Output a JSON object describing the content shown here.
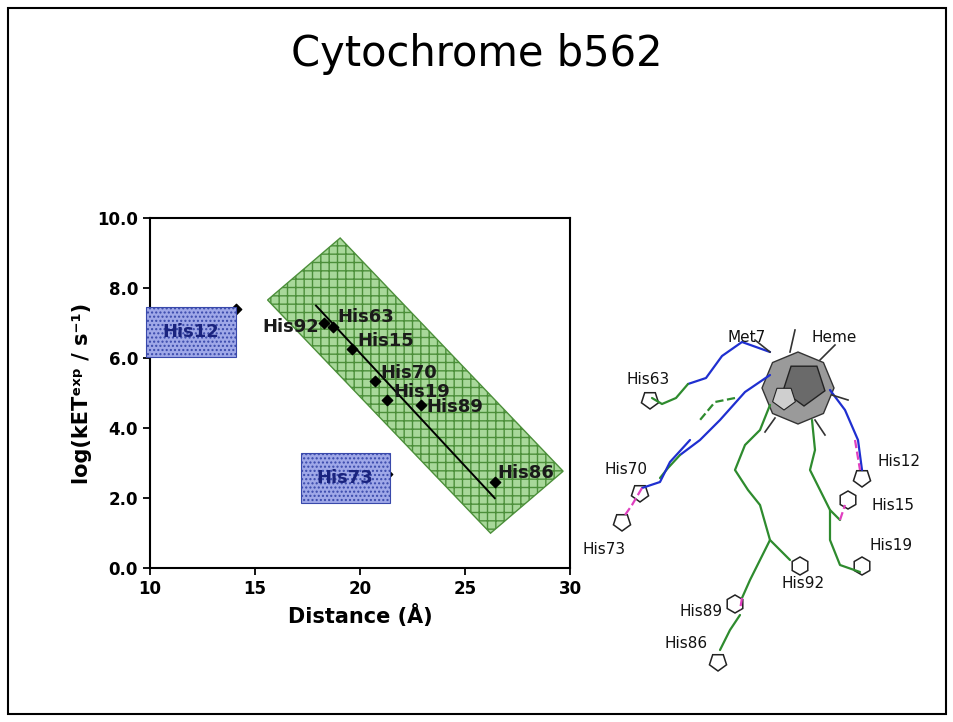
{
  "title": "Cytochrome b562",
  "chart_data": {
    "type": "scatter",
    "x_label": "Distance (Å)",
    "y_label": "log(kETᵉˣᵖ / s⁻¹)",
    "xlim": [
      10,
      30
    ],
    "xticks": [
      10,
      15,
      20,
      25,
      30
    ],
    "ylim": [
      0,
      10
    ],
    "yticks": [
      {
        "value": 0,
        "label": "0.0"
      },
      {
        "value": 2,
        "label": "2.0"
      },
      {
        "value": 4,
        "label": "4.0"
      },
      {
        "value": 6,
        "label": "6.0"
      },
      {
        "value": 8,
        "label": "8.0"
      },
      {
        "value": 10,
        "label": "10.0"
      }
    ],
    "grid": false,
    "series": [
      {
        "type": "scatter",
        "color": "#000000",
        "marker": "diamond",
        "labels": [
          "His92",
          "His63",
          "His15",
          "His70",
          "His19",
          "His89",
          "His86"
        ],
        "x": [
          18.3,
          18.7,
          19.6,
          20.7,
          21.3,
          22.9,
          26.4
        ],
        "values": [
          7.0,
          6.9,
          6.25,
          5.35,
          4.8,
          4.65,
          2.45
        ]
      },
      {
        "type": "scatter",
        "color": "#000000",
        "marker": "diamond",
        "labels": [
          "His12",
          "His73"
        ],
        "x": [
          14.1,
          21.3
        ],
        "values": [
          7.4,
          2.7
        ]
      },
      {
        "type": "line",
        "color": "#000000",
        "line_style": "solid",
        "x": [
          17.9,
          26.4
        ],
        "values": [
          7.5,
          2.0
        ]
      }
    ]
  },
  "diagram": {
    "labels": [
      "Met7",
      "Heme",
      "His63",
      "His12",
      "His70",
      "His15",
      "His73",
      "His19",
      "His92",
      "His89",
      "His86"
    ]
  }
}
